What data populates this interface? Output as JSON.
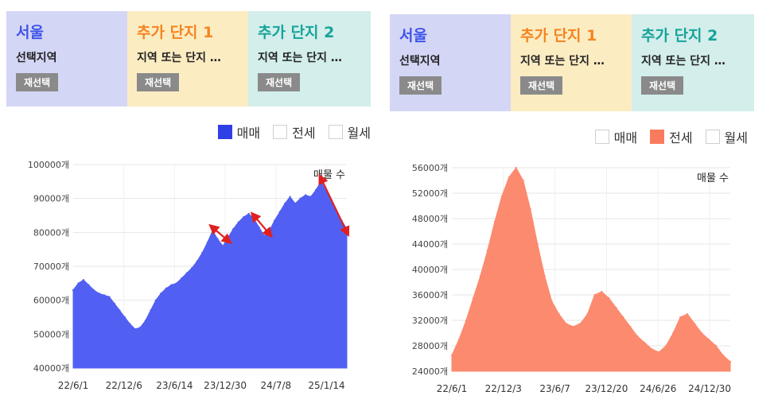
{
  "panels": [
    {
      "header": [
        {
          "title": "서울",
          "subtitle": "선택지역",
          "button": "재선택",
          "title_color": "#3f54e8"
        },
        {
          "title": "추가 단지 1",
          "subtitle": "지역 또는 단지 …",
          "button": "재선택",
          "title_color": "#f5841f"
        },
        {
          "title": "추가 단지 2",
          "subtitle": "지역 또는 단지 …",
          "button": "재선택",
          "title_color": "#17a39b"
        }
      ],
      "legend": [
        {
          "label": "매매",
          "checked": true,
          "color": "#2f3fe8"
        },
        {
          "label": "전세",
          "checked": false,
          "color": "#ffffff"
        },
        {
          "label": "월세",
          "checked": false,
          "color": "#ffffff"
        }
      ],
      "chart_data": {
        "type": "area",
        "title": "",
        "annotation": "매물 수",
        "color": "#5160f2",
        "ylim": [
          40000,
          100000
        ],
        "y_ticks": [
          40000,
          50000,
          60000,
          70000,
          80000,
          90000,
          100000
        ],
        "y_tick_labels": [
          "40000개",
          "50000개",
          "60000개",
          "70000개",
          "80000개",
          "90000개",
          "100000개"
        ],
        "x_tick_labels": [
          "22/6/1",
          "22/12/6",
          "23/6/14",
          "23/12/30",
          "24/7/8",
          "25/1/14"
        ],
        "x_tick_index": [
          0,
          20,
          40,
          60,
          80,
          100
        ],
        "values": [
          63000,
          65000,
          66000,
          64500,
          63000,
          62000,
          61500,
          61000,
          59000,
          57000,
          55000,
          53000,
          51500,
          52000,
          54000,
          57000,
          60000,
          62000,
          63500,
          64500,
          65000,
          66500,
          68000,
          69500,
          71500,
          74000,
          77000,
          80500,
          78000,
          76000,
          78500,
          81000,
          83000,
          84500,
          85500,
          84000,
          81500,
          79000,
          80500,
          83500,
          86000,
          88500,
          90500,
          88500,
          90000,
          91000,
          90500,
          92500,
          95000,
          92000,
          89000,
          86000,
          83500,
          81000
        ],
        "trend_arrows": [
          {
            "from": 27,
            "to": 30,
            "color": "#e02020"
          },
          {
            "from": 35,
            "to": 38,
            "color": "#e02020"
          },
          {
            "from": 48,
            "to": 53,
            "color": "#e02020"
          }
        ]
      }
    },
    {
      "header": [
        {
          "title": "서울",
          "subtitle": "선택지역",
          "button": "재선택",
          "title_color": "#3f54e8"
        },
        {
          "title": "추가 단지 1",
          "subtitle": "지역 또는 단지 …",
          "button": "재선택",
          "title_color": "#f5841f"
        },
        {
          "title": "추가 단지 2",
          "subtitle": "지역 또는 단지 …",
          "button": "재선택",
          "title_color": "#17a39b"
        }
      ],
      "legend": [
        {
          "label": "매매",
          "checked": false,
          "color": "#ffffff"
        },
        {
          "label": "전세",
          "checked": true,
          "color": "#f97b5e"
        },
        {
          "label": "월세",
          "checked": false,
          "color": "#ffffff"
        }
      ],
      "chart_data": {
        "type": "area",
        "title": "",
        "annotation": "매물 수",
        "color": "#fc8a6e",
        "ylim": [
          24000,
          56000
        ],
        "y_ticks": [
          24000,
          28000,
          32000,
          36000,
          40000,
          44000,
          48000,
          52000,
          56000
        ],
        "y_tick_labels": [
          "24000개",
          "28000개",
          "32000개",
          "36000개",
          "40000개",
          "44000개",
          "48000개",
          "52000개",
          "56000개"
        ],
        "x_tick_labels": [
          "22/6/1",
          "22/12/3",
          "23/6/7",
          "23/12/20",
          "24/6/26",
          "24/12/30"
        ],
        "x_tick_index": [
          0,
          20,
          40,
          60,
          80,
          100
        ],
        "values": [
          26500,
          29000,
          32000,
          35500,
          39000,
          43000,
          47500,
          51500,
          54500,
          56000,
          54000,
          49500,
          44000,
          39000,
          35000,
          33000,
          31500,
          31000,
          31500,
          33000,
          36000,
          36500,
          35500,
          34000,
          32500,
          31000,
          29500,
          28500,
          27500,
          27000,
          28000,
          30000,
          32500,
          33000,
          31500,
          30000,
          29000,
          28000,
          26500,
          25500
        ]
      }
    }
  ]
}
